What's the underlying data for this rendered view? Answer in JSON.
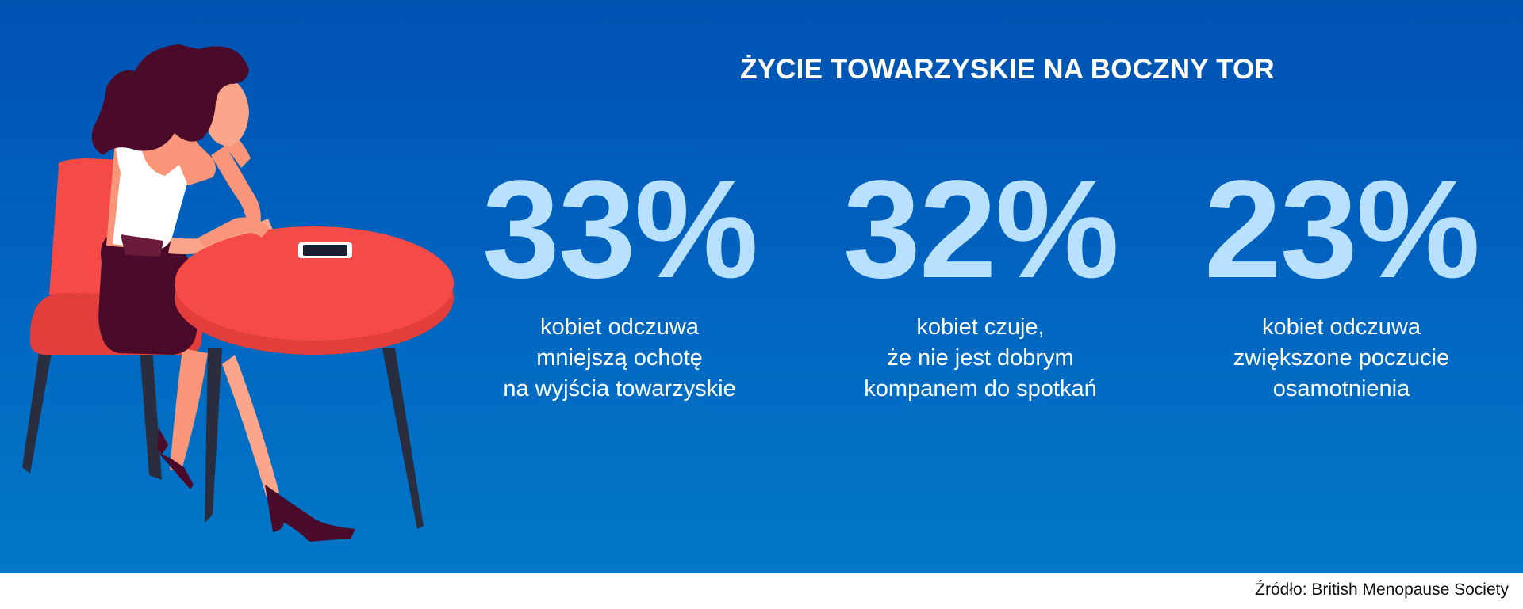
{
  "colors": {
    "banner_top": "#0052b1",
    "banner_bottom": "#0178c8",
    "stat_value": "#b8e1ff",
    "text": "#ffffff",
    "source_text": "#111111",
    "table_and_chair": "#f54a45"
  },
  "header": {
    "title": "ŻYCIE TOWARZYSKIE NA BOCZNY TOR"
  },
  "stats": [
    {
      "value": "33%",
      "description_lines": [
        "kobiet odczuwa",
        "mniejszą ochotę",
        "na wyjścia towarzyskie"
      ]
    },
    {
      "value": "32%",
      "description_lines": [
        "kobiet czuje,",
        "że nie jest dobrym",
        "kompanem do spotkań"
      ]
    },
    {
      "value": "23%",
      "description_lines": [
        "kobiet odczuwa",
        "zwiększone poczucie",
        "osamotnienia"
      ]
    }
  ],
  "illustration": {
    "subject": "woman-sitting-at-table-with-phone"
  },
  "footer": {
    "source": "Źródło: British Menopause Society"
  }
}
